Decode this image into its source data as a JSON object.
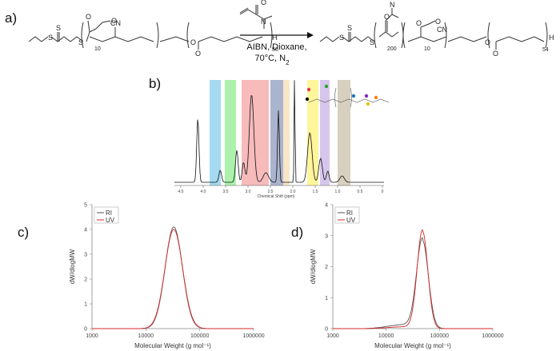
{
  "panels": {
    "a": "a)",
    "b": "b)",
    "c": "c)",
    "d": "d)"
  },
  "scheme": {
    "reactant_labels": {
      "cn": "CN",
      "n10": "10",
      "h": "H",
      "n50": "50"
    },
    "conditions_line1": "AIBN, Dioxane,",
    "conditions_line2": "70°C, N",
    "conditions_sub": "2",
    "product_labels": {
      "cn": "CN",
      "n200": "200",
      "n10": "10",
      "h": "H",
      "n54": "54"
    },
    "atoms": {
      "s": "S",
      "o": "O",
      "n": "N"
    }
  },
  "nmr": {
    "xlabel": "Chemical Shift (ppm)",
    "ticks": [
      "4.5",
      "4.0",
      "3.5",
      "3.0",
      "2.5",
      "2.0",
      "1.5",
      "1.0",
      "0.5",
      "0"
    ],
    "highlight_colors": [
      "#87ceeb",
      "#90ee90",
      "#f4a4a4",
      "#8e9bbd",
      "#f5deb3",
      "#fff27a",
      "#c9b3e6",
      "#cbbfa8"
    ],
    "marker_colors": [
      "#e63946",
      "#111111",
      "#2ca02c",
      "#1f77b4",
      "#7b2cbf",
      "#ff7f0e",
      "#e6c200"
    ]
  },
  "chart_data": [
    {
      "type": "line",
      "panel": "c)",
      "xlabel": "Molecular Weight (g mol⁻¹)",
      "ylabel": "dW/dlogMW",
      "xscale": "log",
      "xlim": [
        1000,
        1000000
      ],
      "ylim": [
        0,
        5
      ],
      "xticks": [
        "1000",
        "10000",
        "100000",
        "1000000"
      ],
      "yticks": [
        "0",
        "1",
        "2",
        "3",
        "4",
        "5"
      ],
      "legend": [
        "RI",
        "UV"
      ],
      "legend_position": "top-left",
      "series": [
        {
          "name": "RI",
          "color": "#555555",
          "peak_x": 33000,
          "peak_y": 4.1,
          "width": 0.16
        },
        {
          "name": "UV",
          "color": "#d62728",
          "peak_x": 33000,
          "peak_y": 4.0,
          "width": 0.165
        }
      ]
    },
    {
      "type": "line",
      "panel": "d)",
      "xlabel": "Molecular Weight (g mol⁻¹)",
      "ylabel": "dW/dlogMW",
      "xscale": "log",
      "xlim": [
        1000,
        1000000
      ],
      "ylim": [
        0,
        4
      ],
      "xticks": [
        "1000",
        "10000",
        "100000",
        "1000000"
      ],
      "yticks": [
        "0",
        "1",
        "2",
        "3",
        "4"
      ],
      "legend": [
        "RI",
        "UV"
      ],
      "legend_position": "top-left",
      "series": [
        {
          "name": "RI",
          "color": "#555555",
          "peak_x": 48000,
          "peak_y": 2.85,
          "width": 0.11,
          "tail": 0.55
        },
        {
          "name": "UV",
          "color": "#d62728",
          "peak_x": 48000,
          "peak_y": 3.15,
          "width": 0.1,
          "tail": 0.25
        }
      ]
    }
  ]
}
